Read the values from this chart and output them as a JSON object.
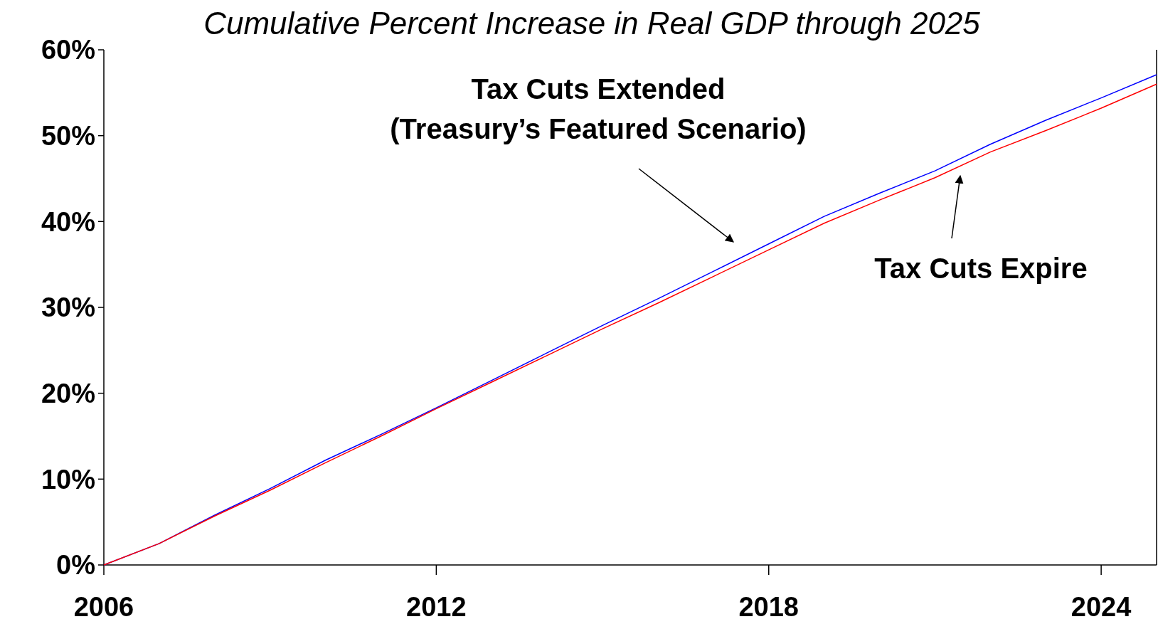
{
  "chart_data": {
    "type": "line",
    "title": "Cumulative Percent Increase in Real GDP through 2025",
    "x": [
      2006,
      2007,
      2008,
      2009,
      2010,
      2011,
      2012,
      2013,
      2014,
      2015,
      2016,
      2017,
      2018,
      2019,
      2020,
      2021,
      2022,
      2023,
      2024,
      2025
    ],
    "series": [
      {
        "color": "#0000ff",
        "values": [
          0,
          2.5,
          5.8,
          8.9,
          12.2,
          15.2,
          18.3,
          21.5,
          24.7,
          27.9,
          31.0,
          34.2,
          37.4,
          40.6,
          43.3,
          45.9,
          49.0,
          51.8,
          54.4,
          57.1
        ]
      },
      {
        "color": "#ff0000",
        "values": [
          0,
          2.5,
          5.7,
          8.7,
          11.9,
          15.0,
          18.2,
          21.3,
          24.4,
          27.5,
          30.5,
          33.6,
          36.7,
          39.8,
          42.5,
          45.1,
          48.1,
          50.6,
          53.2,
          56.0
        ]
      }
    ],
    "xlim": [
      2006,
      2025
    ],
    "xticks": [
      2006,
      2012,
      2018,
      2024
    ],
    "ylim": [
      0,
      60
    ],
    "yticks": [
      {
        "value": 0,
        "label": "0%"
      },
      {
        "value": 10,
        "label": "10%"
      },
      {
        "value": 20,
        "label": "20%"
      },
      {
        "value": 30,
        "label": "30%"
      },
      {
        "value": 40,
        "label": "40%"
      },
      {
        "value": 50,
        "label": "50%"
      },
      {
        "value": 60,
        "label": "60%"
      }
    ],
    "grid": false,
    "marker": "none",
    "line_style": "solid",
    "annotations": [
      "Tax Cuts Extended\n(Treasury’s Featured Scenario)",
      "Tax Cuts Expire"
    ]
  }
}
